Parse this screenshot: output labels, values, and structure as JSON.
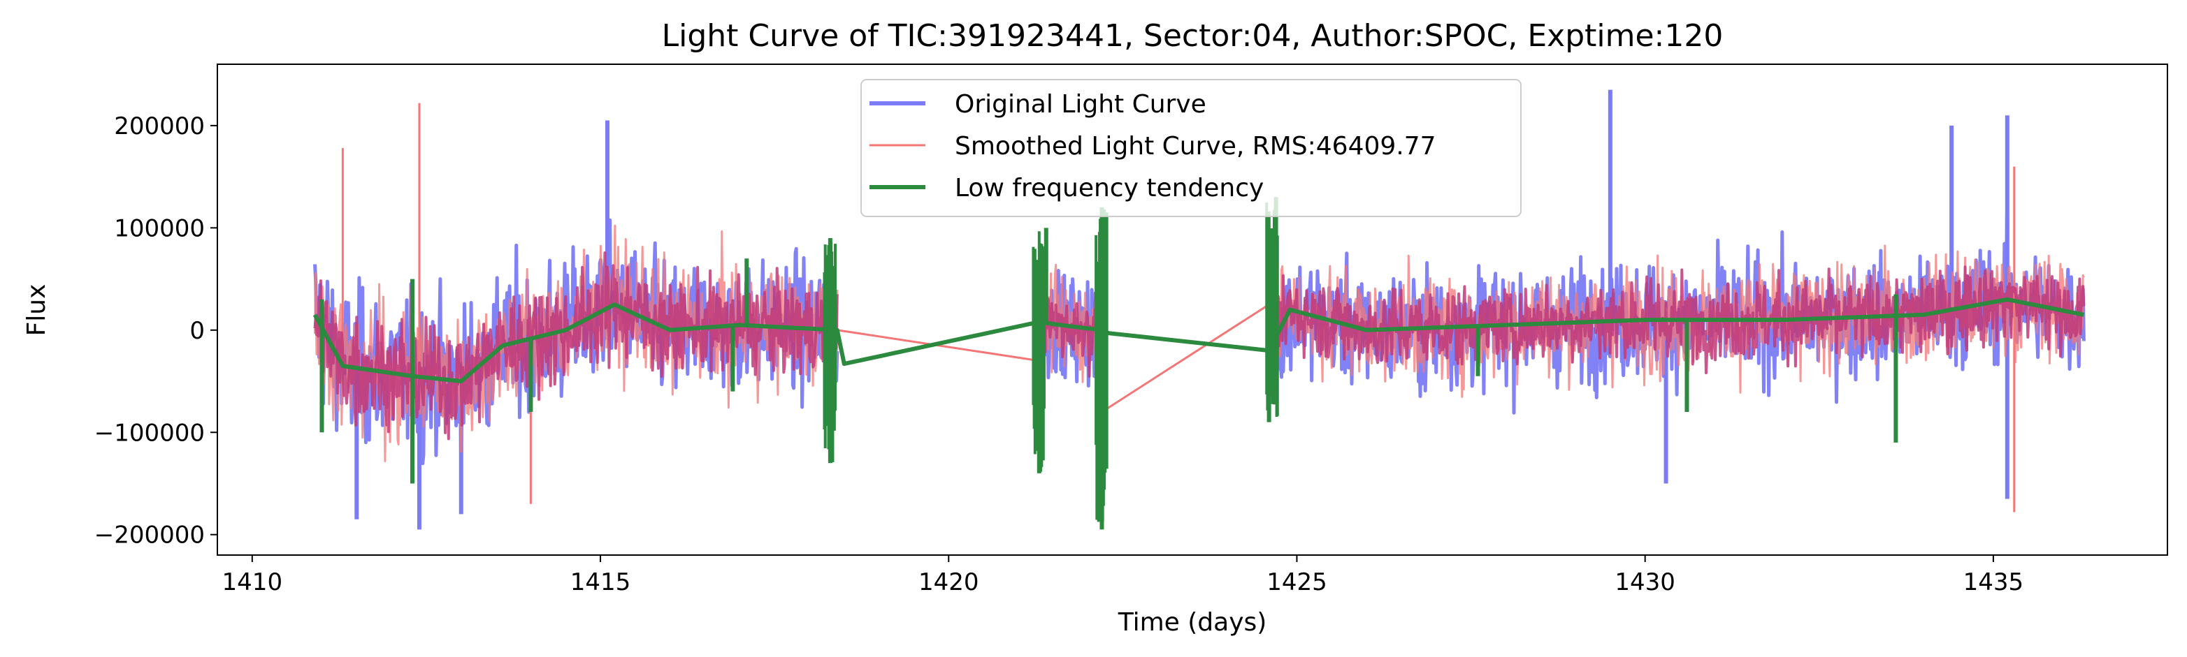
{
  "chart_data": {
    "type": "line",
    "title": "Light Curve of TIC:391923441, Sector:04, Author:SPOC, Exptime:120",
    "xlabel": "Time (days)",
    "ylabel": "Flux",
    "xlim": [
      1409.5,
      1437.5
    ],
    "ylim": [
      -220000,
      260000
    ],
    "xticks": [
      1410,
      1415,
      1420,
      1425,
      1430,
      1435
    ],
    "xtick_labels": [
      "1410",
      "1415",
      "1420",
      "1425",
      "1430",
      "1435"
    ],
    "yticks": [
      -200000,
      -100000,
      0,
      100000,
      200000
    ],
    "ytick_labels": [
      "−200000",
      "−100000",
      "0",
      "100000",
      "200000"
    ],
    "grid": false,
    "legend_position": "top-center",
    "segments": [
      {
        "start": 1410.9,
        "end": 1418.4
      },
      {
        "start": 1421.3,
        "end": 1422.2
      },
      {
        "start": 1424.6,
        "end": 1436.3
      }
    ],
    "series": [
      {
        "name": "Original Light Curve",
        "color": "#7b7bf7",
        "opacity": 0.95,
        "amplitude_envelope": [
          [
            1410.9,
            150000
          ],
          [
            1413.5,
            140000
          ],
          [
            1418.4,
            120000
          ],
          [
            1421.3,
            100000
          ],
          [
            1422.2,
            100000
          ],
          [
            1424.6,
            110000
          ],
          [
            1436.3,
            110000
          ]
        ],
        "extreme_peaks": [
          [
            1415.1,
            205000
          ],
          [
            1429.5,
            235000
          ],
          [
            1435.2,
            210000
          ],
          [
            1434.4,
            200000
          ]
        ],
        "extreme_dips": [
          [
            1412.4,
            -195000
          ],
          [
            1411.5,
            -185000
          ],
          [
            1413.0,
            -180000
          ],
          [
            1430.3,
            -150000
          ],
          [
            1435.2,
            -165000
          ]
        ]
      },
      {
        "name": "Smoothed Light Curve, RMS:46409.77",
        "color": "#f47676",
        "opacity": 0.9,
        "bridges": [
          [
            [
              1418.4,
              0
            ],
            [
              1421.3,
              -30000
            ]
          ],
          [
            [
              1422.2,
              -80000
            ],
            [
              1424.6,
              25000
            ]
          ]
        ],
        "extreme_peaks": [
          [
            1412.4,
            222000
          ],
          [
            1411.3,
            178000
          ],
          [
            1435.3,
            160000
          ]
        ],
        "extreme_dips": [
          [
            1435.3,
            -178000
          ],
          [
            1414.0,
            -170000
          ]
        ]
      },
      {
        "name": "Low frequency tendency",
        "color": "#2b8a3e",
        "trend_points": [
          [
            1410.9,
            15000
          ],
          [
            1411.3,
            -35000
          ],
          [
            1412.3,
            -45000
          ],
          [
            1413.0,
            -50000
          ],
          [
            1413.6,
            -15000
          ],
          [
            1414.5,
            0
          ],
          [
            1415.2,
            25000
          ],
          [
            1416.0,
            0
          ],
          [
            1417.0,
            5000
          ],
          [
            1418.4,
            0
          ],
          [
            1418.5,
            -33000
          ],
          [
            1421.3,
            8000
          ],
          [
            1421.6,
            5000
          ],
          [
            1422.2,
            0
          ],
          [
            1422.3,
            -3000
          ],
          [
            1424.6,
            -20000
          ],
          [
            1424.9,
            20000
          ],
          [
            1426.0,
            0
          ],
          [
            1428.0,
            5000
          ],
          [
            1430.0,
            10000
          ],
          [
            1432.0,
            10000
          ],
          [
            1434.0,
            15000
          ],
          [
            1435.2,
            30000
          ],
          [
            1436.3,
            15000
          ]
        ],
        "spikes": [
          [
            1411.0,
            -100000
          ],
          [
            1411.0,
            30000
          ],
          [
            1412.3,
            -150000
          ],
          [
            1412.3,
            50000
          ],
          [
            1414.0,
            -80000
          ],
          [
            1416.9,
            -60000
          ],
          [
            1417.1,
            70000
          ],
          [
            1418.3,
            -130000
          ],
          [
            1418.3,
            90000
          ],
          [
            1421.3,
            -140000
          ],
          [
            1421.4,
            100000
          ],
          [
            1422.2,
            -195000
          ],
          [
            1422.2,
            120000
          ],
          [
            1424.6,
            -90000
          ],
          [
            1424.7,
            130000
          ],
          [
            1427.6,
            -45000
          ],
          [
            1430.6,
            -80000
          ],
          [
            1433.6,
            -110000
          ],
          [
            1433.6,
            35000
          ]
        ]
      }
    ]
  }
}
